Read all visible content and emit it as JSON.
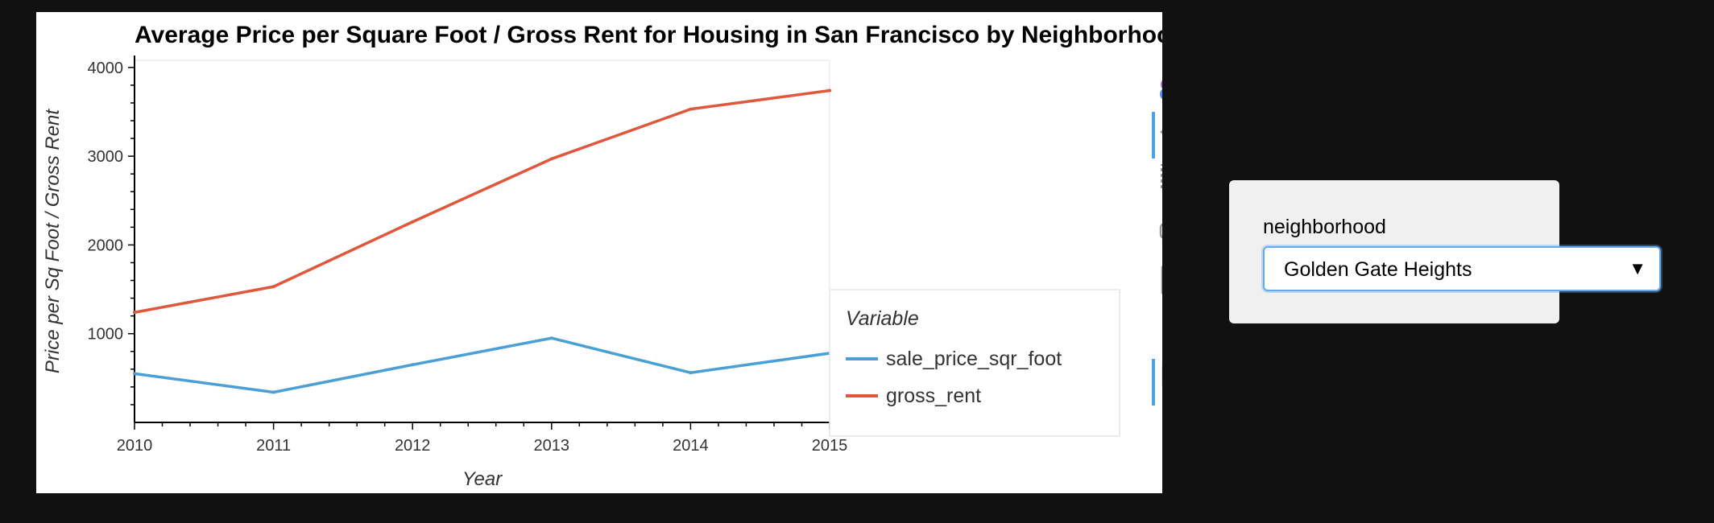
{
  "chart_data": {
    "type": "line",
    "title": "Average Price per Square Foot / Gross Rent for Housing in San Francisco by Neighborhood",
    "xlabel": "Year",
    "ylabel": "Price per Sq Foot / Gross Rent",
    "x": [
      2010,
      2011,
      2012,
      2013,
      2014,
      2015
    ],
    "x_ticks": [
      "2010",
      "2011",
      "2012",
      "2013",
      "2014",
      "2015"
    ],
    "y_ticks": [
      "1000",
      "2000",
      "3000",
      "4000"
    ],
    "xlim": [
      2010,
      2015
    ],
    "ylim": [
      0,
      4080
    ],
    "grid": false,
    "legend": {
      "title": "Variable",
      "placement": "right",
      "entries": [
        "sale_price_sqr_foot",
        "gross_rent"
      ]
    },
    "series": [
      {
        "name": "sale_price_sqr_foot",
        "color": "#4a9fd5",
        "values": [
          550,
          340,
          650,
          950,
          560,
          780
        ]
      },
      {
        "name": "gross_rent",
        "color": "#e0573c",
        "values": [
          1240,
          1530,
          2260,
          2970,
          3530,
          3740
        ]
      }
    ]
  },
  "toolbar": {
    "tools": [
      "bokeh-logo-icon",
      "pan-icon",
      "box-zoom-icon",
      "wheel-zoom-icon",
      "save-icon",
      "reset-icon",
      "hover-icon"
    ]
  },
  "widget": {
    "label": "neighborhood",
    "selected": "Golden Gate Heights"
  }
}
